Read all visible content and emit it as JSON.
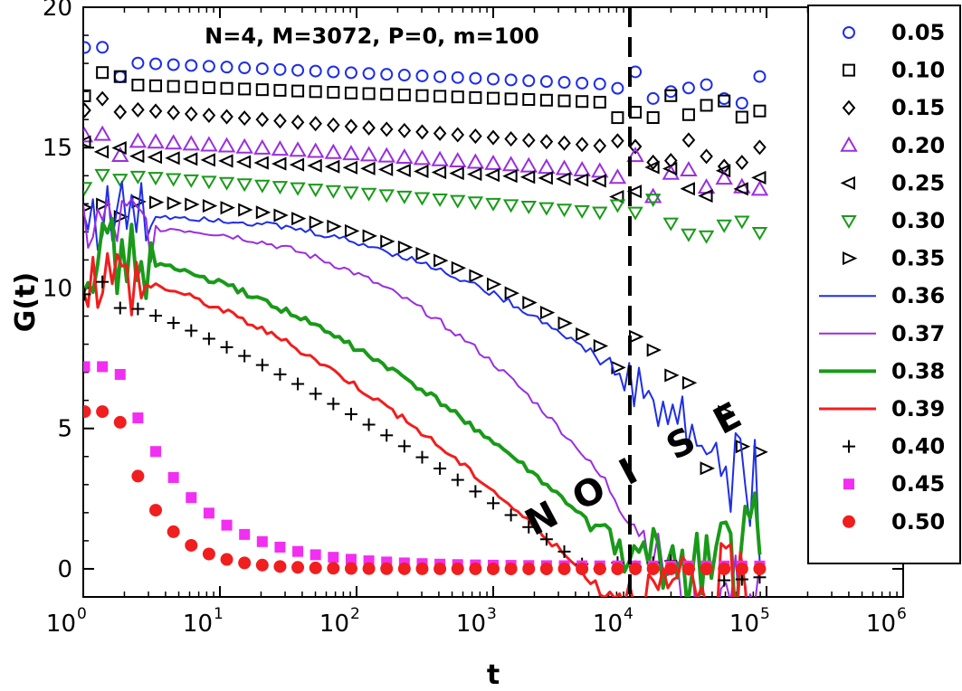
{
  "chart_data": {
    "type": "scatter",
    "title": "N=4, M=3072, P=0, m=100",
    "xlabel": "t",
    "ylabel": "G(t)",
    "xscale": "log",
    "xlim": [
      1,
      1000000
    ],
    "ylim": [
      -1,
      20
    ],
    "x_ticks": [
      {
        "base": "10",
        "exp": "0",
        "value": 1
      },
      {
        "base": "10",
        "exp": "1",
        "value": 10
      },
      {
        "base": "10",
        "exp": "2",
        "value": 100
      },
      {
        "base": "10",
        "exp": "3",
        "value": 1000
      },
      {
        "base": "10",
        "exp": "4",
        "value": 10000
      },
      {
        "base": "10",
        "exp": "5",
        "value": 100000
      },
      {
        "base": "10",
        "exp": "6",
        "value": 1000000
      }
    ],
    "y_ticks": [
      {
        "label": "0",
        "value": 0
      },
      {
        "label": "5",
        "value": 5
      },
      {
        "label": "10",
        "value": 10
      },
      {
        "label": "15",
        "value": 15
      },
      {
        "label": "20",
        "value": 20
      }
    ],
    "annotation": {
      "text": "NOISE",
      "letters": [
        "N",
        "O",
        "I",
        "S",
        "E"
      ]
    },
    "vline": {
      "x": 10000,
      "style": "dashed",
      "color": "#000000"
    },
    "legend_position": "right",
    "series": [
      {
        "name": "0.05",
        "marker": "circle-open",
        "color": "#1f2ee6",
        "A": 18.1,
        "B": 17.0,
        "span": 5.0,
        "k": 1.0,
        "decay": 0,
        "noise": 0.6
      },
      {
        "name": "0.10",
        "marker": "square-open",
        "color": "#000000",
        "A": 17.3,
        "B": 16.4,
        "span": 5.0,
        "k": 1.0,
        "decay": 0,
        "noise": 0.6
      },
      {
        "name": "0.15",
        "marker": "diamond-open",
        "color": "#000000",
        "A": 16.5,
        "B": 14.6,
        "span": 5.0,
        "k": 1.0,
        "decay": 0,
        "noise": 0.5
      },
      {
        "name": "0.20",
        "marker": "triangle-up-open",
        "color": "#9a2ee0",
        "A": 15.3,
        "B": 13.7,
        "span": 5.0,
        "k": 1.2,
        "decay": 0,
        "noise": 0.8
      },
      {
        "name": "0.25",
        "marker": "triangle-left-open",
        "color": "#000000",
        "A": 14.8,
        "B": 13.5,
        "span": 5.0,
        "k": 1.0,
        "decay": 0,
        "noise": 0.6
      },
      {
        "name": "0.30",
        "marker": "triangle-down-open",
        "color": "#199a19",
        "A": 14.1,
        "B": 12.2,
        "span": 5.0,
        "k": 1.1,
        "decay": 0,
        "noise": 0.7
      },
      {
        "name": "0.35",
        "marker": "triangle-right-open",
        "color": "#000000",
        "A": 13.1,
        "B": 3.0,
        "span": 5.0,
        "k": 2.4,
        "decay": 0,
        "noise": 1.5
      },
      {
        "name": "0.36",
        "marker": "line",
        "color": "#1f2ee6",
        "width": 2,
        "A": 12.6,
        "B": 2.0,
        "span": 5.0,
        "k": 2.6,
        "decay": 0,
        "noise": 1.2
      },
      {
        "name": "0.37",
        "marker": "line",
        "color": "#9a2ee0",
        "width": 2,
        "A": 12.2,
        "B": -1.0,
        "span": 4.4,
        "k": 2.6,
        "decay": 0,
        "noise": 0.9
      },
      {
        "name": "0.38",
        "marker": "line",
        "color": "#199a19",
        "width": 4,
        "A": 11.2,
        "B": 0.3,
        "span": 4.0,
        "k": 1.7,
        "decay": 0,
        "noise": 1.3
      },
      {
        "name": "0.39",
        "marker": "line",
        "color": "#f01e1e",
        "width": 3,
        "A": 10.6,
        "B": -0.8,
        "span": 3.8,
        "k": 1.6,
        "decay": 0,
        "noise": 1.0
      },
      {
        "name": "0.40",
        "marker": "plus",
        "color": "#000000",
        "A": 9.8,
        "B": 0.0,
        "span": 3.7,
        "k": 1.3,
        "decay": 0,
        "noise": 0.5
      },
      {
        "name": "0.45",
        "marker": "square-filled",
        "color": "#f22ef2",
        "A": 7.2,
        "B": 0.1,
        "span": 0,
        "k": 1.0,
        "decay": 0.9,
        "noise": 0.0
      },
      {
        "name": "0.50",
        "marker": "circle-filled",
        "color": "#f01e1e",
        "A": 5.6,
        "B": 0.0,
        "span": 0,
        "k": 1.0,
        "decay": 1.6,
        "noise": 0.0
      }
    ]
  }
}
